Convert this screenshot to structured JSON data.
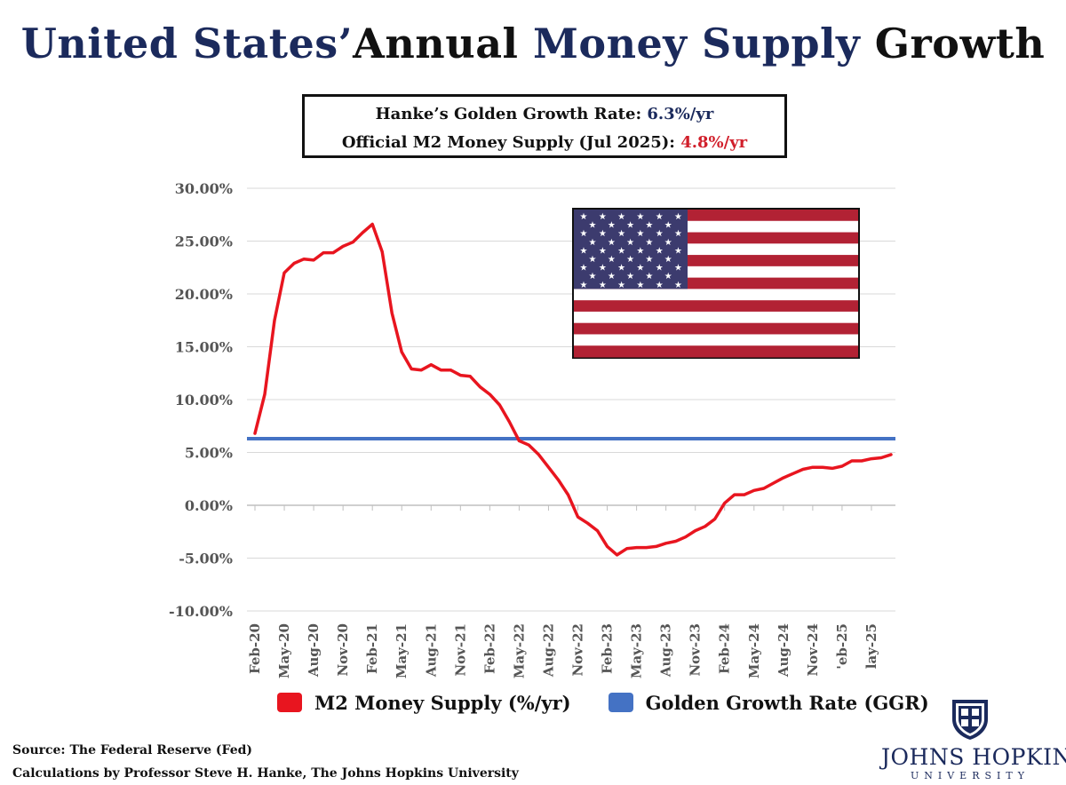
{
  "header": {
    "title_part1": "United States’",
    "title_part2": "Annual ",
    "title_part3": "Money Supply",
    "title_part4": " Growth"
  },
  "rate_box": {
    "line1_label": "Hanke’s Golden Growth Rate: ",
    "line1_value": "6.3%/yr",
    "line2_label": "Official M2 Money Supply (Jul 2025): ",
    "line2_value": "4.8%/yr"
  },
  "legend": {
    "m2": "M2 Money Supply (%/yr)",
    "ggr": "Golden Growth Rate (GGR)"
  },
  "footer": {
    "source": "Source: The Federal Reserve (Fed)",
    "calc": "Calculations by Professor Steve H. Hanke, The Johns Hopkins University"
  },
  "logo": {
    "name": "JOHNS HOPKINS",
    "sub": "UNIVERSITY"
  },
  "colors": {
    "m2_line": "#e8151f",
    "ggr_line": "#4472c4",
    "navy": "#1b2a5c",
    "red_text": "#d11f2b",
    "flag_red": "#b22234",
    "flag_blue": "#3c3b6e"
  },
  "chart_data": {
    "type": "line",
    "title": "United States’ Annual Money Supply Growth",
    "xlabel": "",
    "ylabel": "",
    "ylim": [
      -10,
      30
    ],
    "ytick_values": [
      30,
      25,
      20,
      15,
      10,
      5,
      0,
      -5,
      -10
    ],
    "ytick_labels": [
      "30.00%",
      "25.00%",
      "20.00%",
      "15.00%",
      "10.00%",
      "5.00%",
      "0.00%",
      "-5.00%",
      "-10.00%"
    ],
    "xtick_labels": [
      "Feb-20",
      "May-20",
      "Aug-20",
      "Nov-20",
      "Feb-21",
      "May-21",
      "Aug-21",
      "Nov-21",
      "Feb-22",
      "May-22",
      "Aug-22",
      "Nov-22",
      "Feb-23",
      "May-23",
      "Aug-23",
      "Nov-23",
      "Feb-24",
      "May-24",
      "Aug-24",
      "Nov-24",
      "'eb-25",
      "lay-25"
    ],
    "x_months": [
      "Feb-20",
      "Mar-20",
      "Apr-20",
      "May-20",
      "Jun-20",
      "Jul-20",
      "Aug-20",
      "Sep-20",
      "Oct-20",
      "Nov-20",
      "Dec-20",
      "Jan-21",
      "Feb-21",
      "Mar-21",
      "Apr-21",
      "May-21",
      "Jun-21",
      "Jul-21",
      "Aug-21",
      "Sep-21",
      "Oct-21",
      "Nov-21",
      "Dec-21",
      "Jan-22",
      "Feb-22",
      "Mar-22",
      "Apr-22",
      "May-22",
      "Jun-22",
      "Jul-22",
      "Aug-22",
      "Sep-22",
      "Oct-22",
      "Nov-22",
      "Dec-22",
      "Jan-23",
      "Feb-23",
      "Mar-23",
      "Apr-23",
      "May-23",
      "Jun-23",
      "Jul-23",
      "Aug-23",
      "Sep-23",
      "Oct-23",
      "Nov-23",
      "Dec-23",
      "Jan-24",
      "Feb-24",
      "Mar-24",
      "Apr-24",
      "May-24",
      "Jun-24",
      "Jul-24",
      "Aug-24",
      "Sep-24",
      "Oct-24",
      "Nov-24",
      "Dec-24",
      "Jan-25",
      "Feb-25",
      "Mar-25",
      "Apr-25",
      "May-25",
      "Jun-25",
      "Jul-25"
    ],
    "series": [
      {
        "name": "M2 Money Supply (%/yr)",
        "values": [
          6.8,
          10.5,
          17.5,
          22.0,
          22.9,
          23.3,
          23.2,
          23.9,
          23.9,
          24.5,
          24.9,
          25.8,
          26.6,
          24.0,
          18.2,
          14.5,
          12.9,
          12.8,
          13.3,
          12.8,
          12.8,
          12.3,
          12.2,
          11.2,
          10.5,
          9.5,
          7.9,
          6.1,
          5.7,
          4.8,
          3.6,
          2.4,
          1.0,
          -1.1,
          -1.7,
          -2.4,
          -3.9,
          -4.7,
          -4.1,
          -4.0,
          -4.0,
          -3.9,
          -3.6,
          -3.4,
          -3.0,
          -2.4,
          -2.0,
          -1.3,
          0.2,
          1.0,
          1.0,
          1.4,
          1.6,
          2.1,
          2.6,
          3.0,
          3.4,
          3.6,
          3.6,
          3.5,
          3.7,
          4.2,
          4.2,
          4.4,
          4.5,
          4.8
        ]
      },
      {
        "name": "Golden Growth Rate (GGR)",
        "values": [
          6.3
        ]
      }
    ],
    "grid": true,
    "legend": "bottom"
  }
}
